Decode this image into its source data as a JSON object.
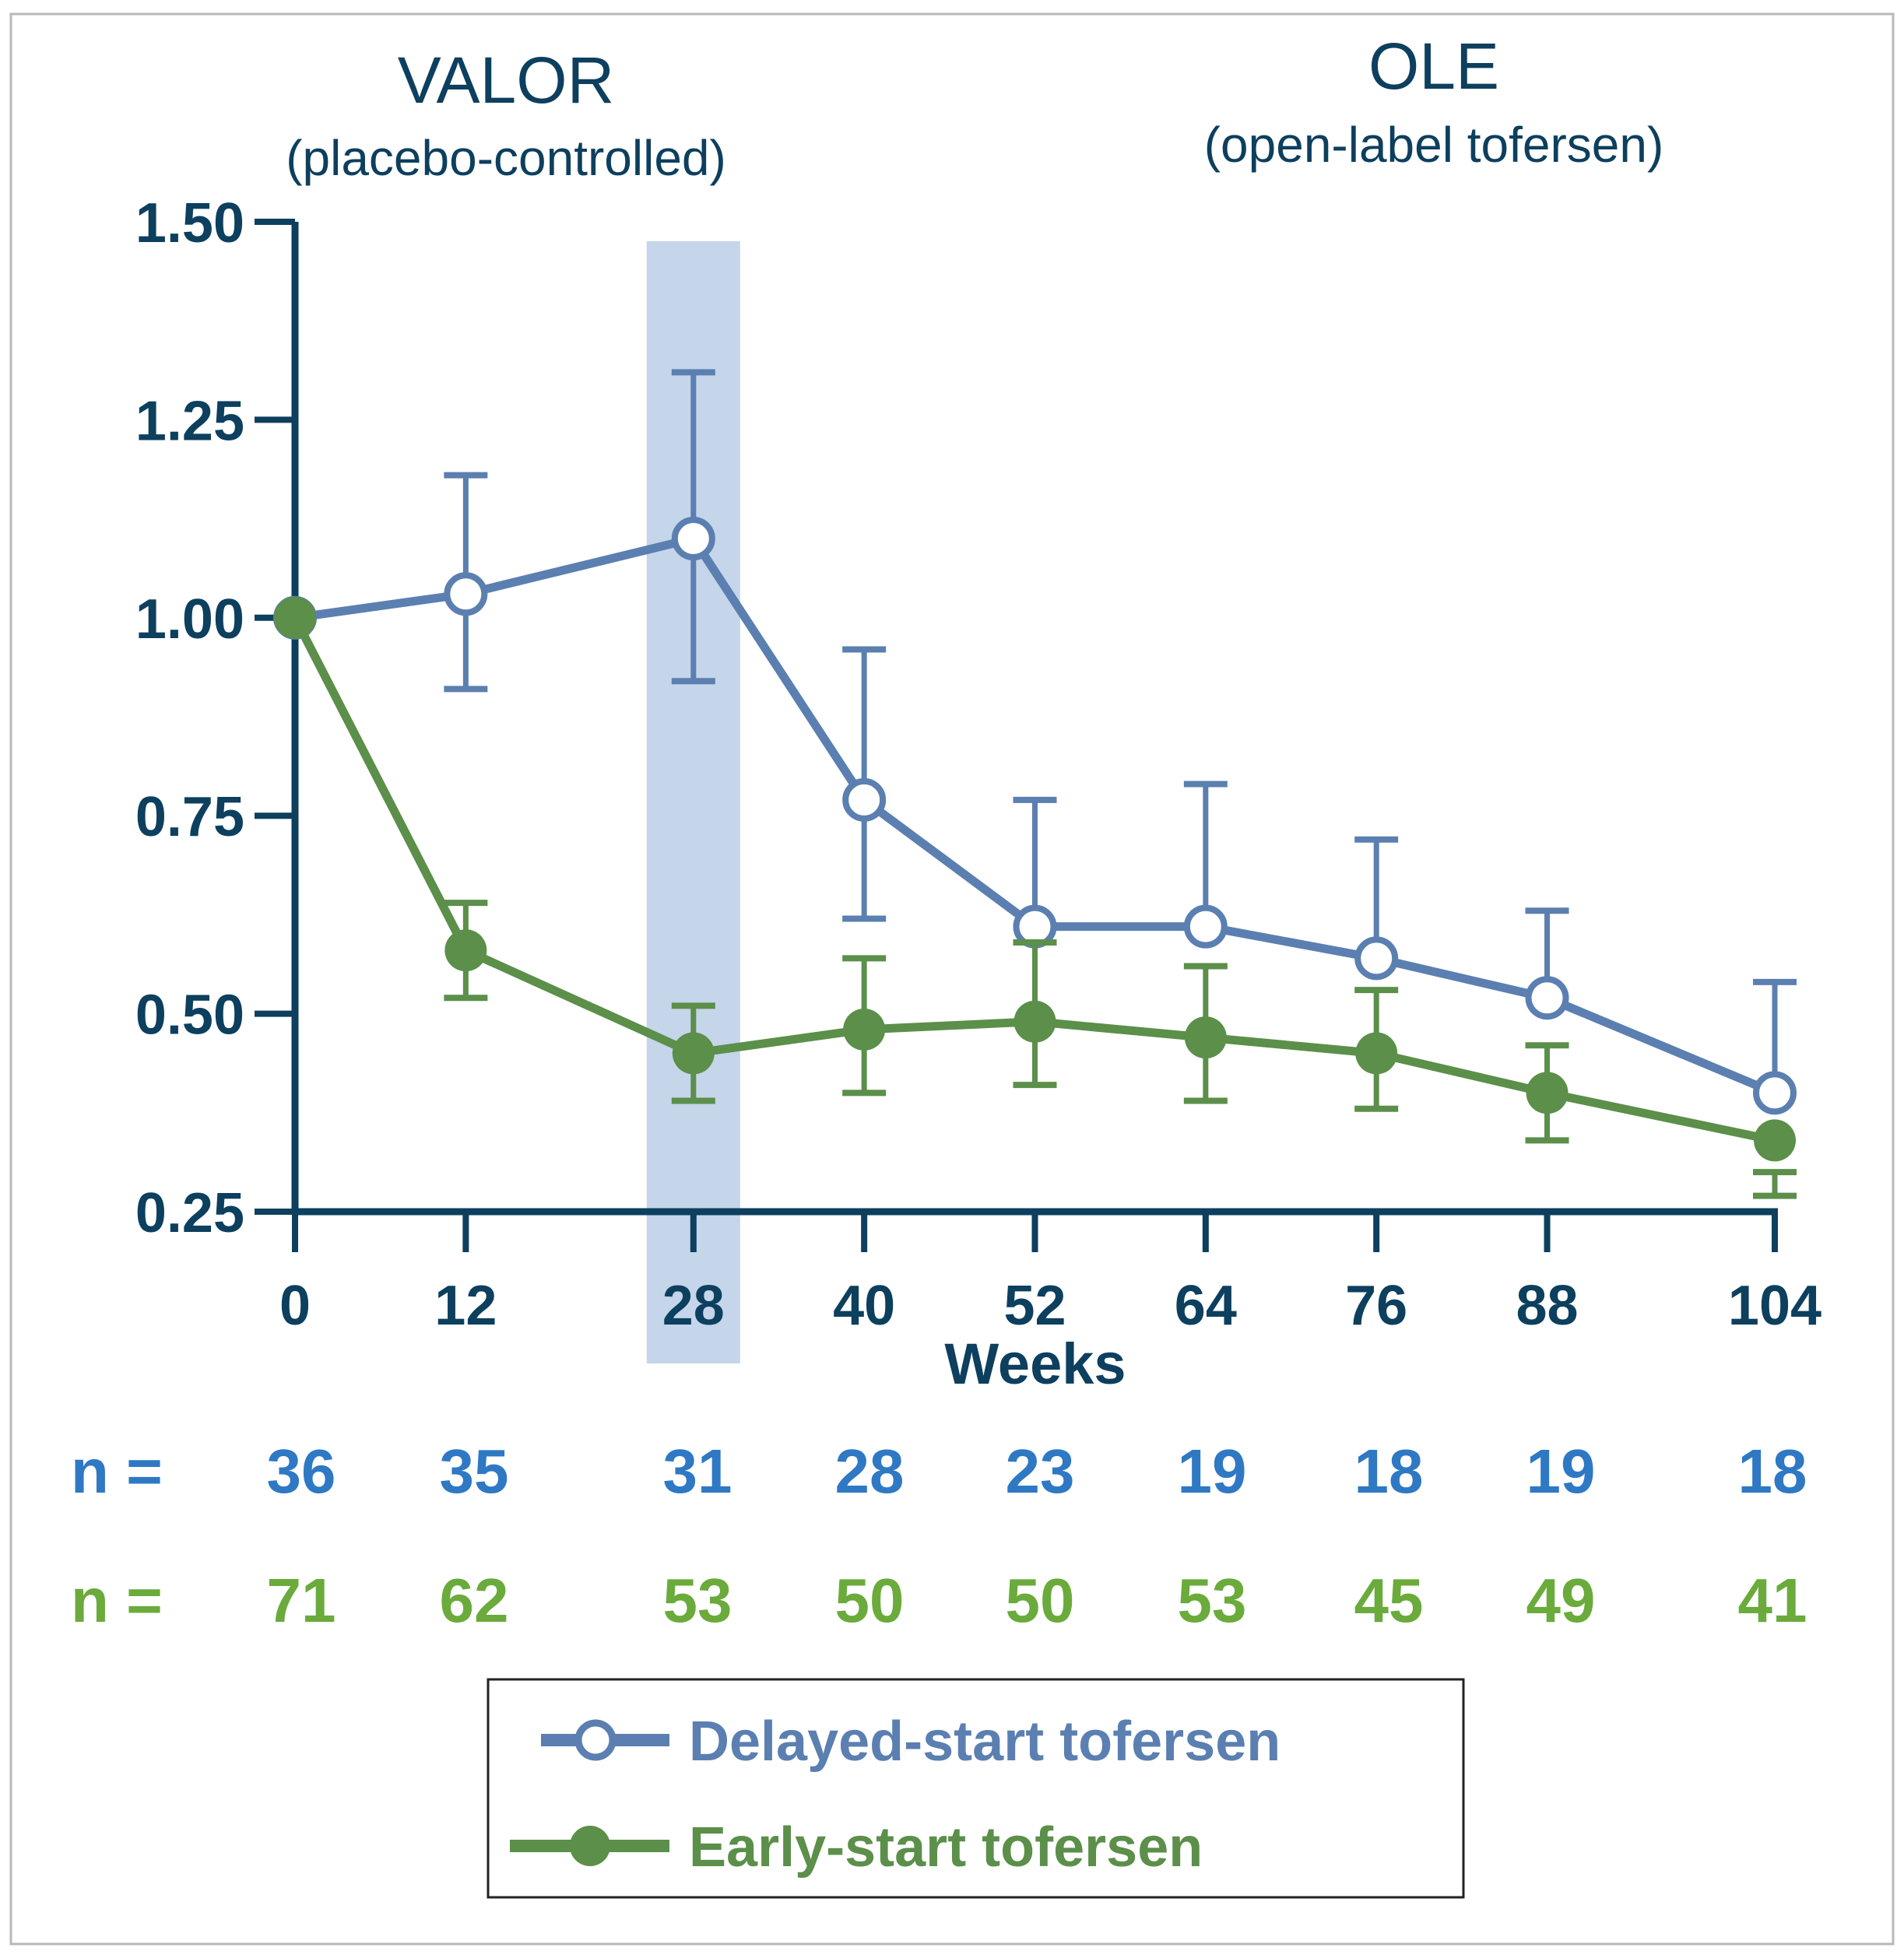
{
  "chart_data": {
    "type": "line",
    "title_left": "VALOR",
    "subtitle_left": "(placebo-controlled)",
    "title_right": "OLE",
    "subtitle_right": "(open-label tofersen)",
    "xlabel": "Weeks",
    "ylabel": "",
    "x": [
      0,
      12,
      28,
      40,
      52,
      64,
      76,
      88,
      104
    ],
    "x_tick_labels": [
      "0",
      "12",
      "28",
      "40",
      "52",
      "64",
      "76",
      "88",
      "104"
    ],
    "ylim": [
      0.25,
      1.5
    ],
    "y_tick_labels": [
      "1.50",
      "1.25",
      "1.00",
      "0.75",
      "0.50",
      "0.25"
    ],
    "y_ticks": [
      1.5,
      1.25,
      1.0,
      0.75,
      0.5,
      0.25
    ],
    "highlight_week": 28,
    "highlight_color": "#c5d5ea",
    "grid": false,
    "legend_position": "bottom",
    "series": [
      {
        "name": "Delayed-start tofersen",
        "color": "#5b7fb0",
        "marker": "open-circle",
        "values": [
          1.0,
          1.03,
          1.1,
          0.77,
          0.61,
          0.61,
          0.57,
          0.52,
          0.4
        ],
        "err_low": [
          null,
          0.91,
          0.92,
          0.62,
          null,
          null,
          null,
          null,
          null
        ],
        "err_high": [
          null,
          1.18,
          1.31,
          0.96,
          0.77,
          0.79,
          0.72,
          0.63,
          0.54
        ],
        "n_label": "n =",
        "n": [
          "36",
          "35",
          "31",
          "28",
          "23",
          "19",
          "18",
          "19",
          "18"
        ],
        "n_color": "#2f78c4"
      },
      {
        "name": "Early-start tofersen",
        "color": "#5b8f4a",
        "marker": "filled-circle",
        "values": [
          1.0,
          0.58,
          0.45,
          0.48,
          0.49,
          0.47,
          0.45,
          0.4,
          0.34
        ],
        "err_low": [
          null,
          0.52,
          0.39,
          0.4,
          0.41,
          0.39,
          0.38,
          0.34,
          0.27
        ],
        "err_high": [
          null,
          0.64,
          0.51,
          0.57,
          0.59,
          0.56,
          0.53,
          0.46,
          0.3
        ],
        "n_label": "n =",
        "n": [
          "71",
          "62",
          "53",
          "50",
          "50",
          "53",
          "45",
          "49",
          "41"
        ],
        "n_color": "#6aab3c"
      }
    ],
    "axis_color": "#0d3f5e"
  }
}
